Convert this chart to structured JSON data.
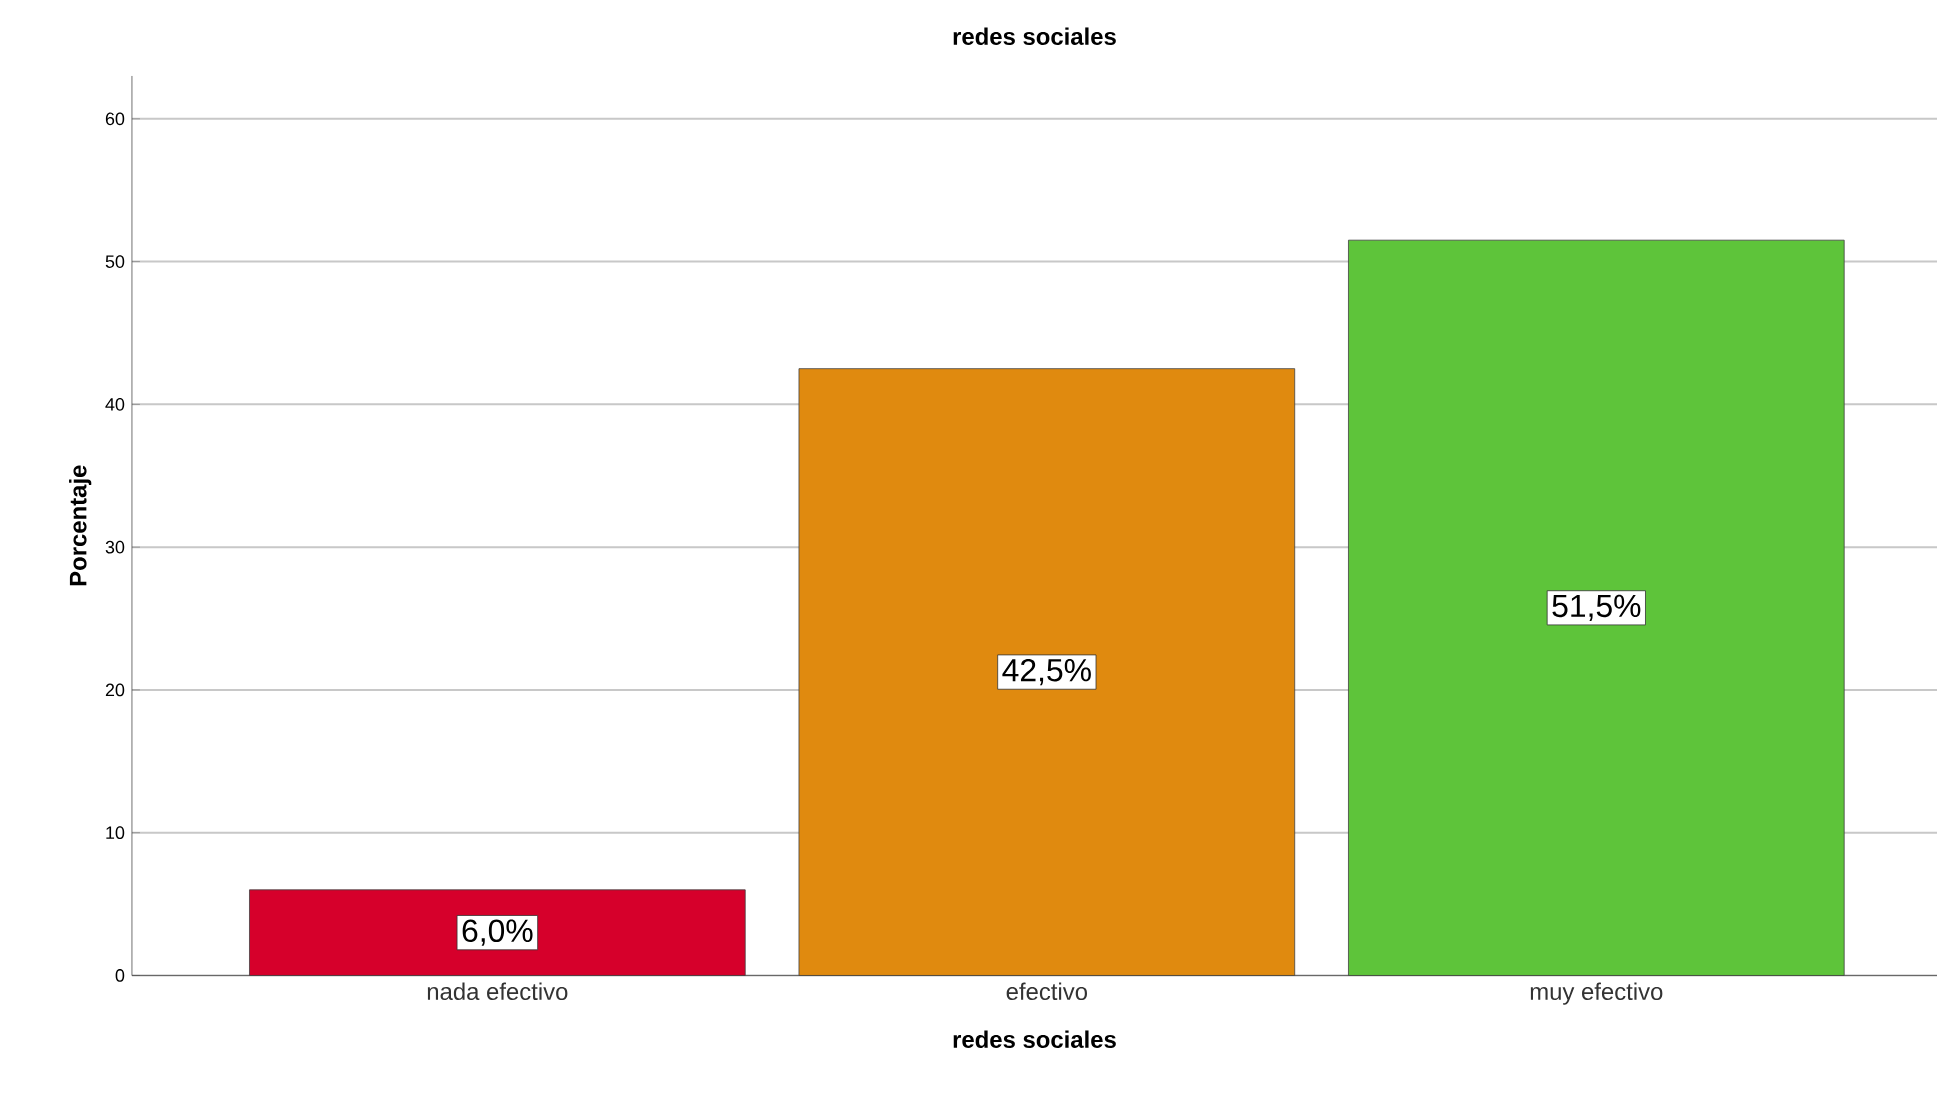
{
  "chart_data": {
    "type": "bar",
    "title": "redes sociales",
    "xlabel": "redes sociales",
    "ylabel": "Porcentaje",
    "categories": [
      "nada efectivo",
      "efectivo",
      "muy efectivo"
    ],
    "values": [
      6.0,
      42.5,
      51.5
    ],
    "colors": [
      "#d6002b",
      "#e08a0f",
      "#5ec43a"
    ],
    "value_labels": [
      "6,0%",
      "42,5%",
      "51,5%"
    ],
    "ylim": [
      0,
      63
    ],
    "yticks": [
      0,
      10,
      20,
      30,
      40,
      50,
      60
    ],
    "grid": "y"
  }
}
